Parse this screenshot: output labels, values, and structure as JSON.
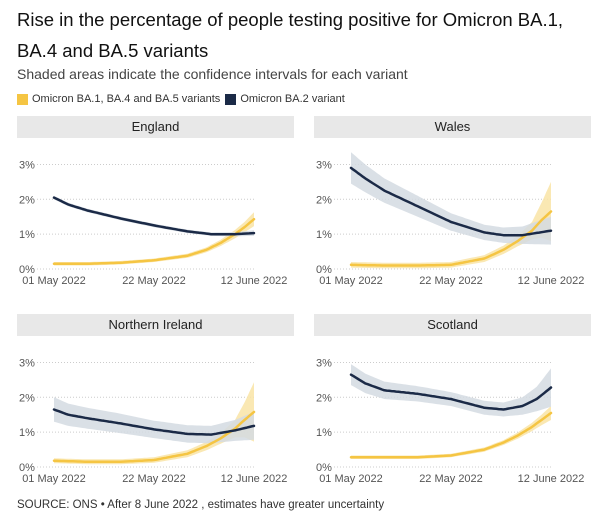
{
  "title": "Rise in the percentage of people testing positive for Omicron BA.1, BA.4 and BA.5 variants",
  "subtitle": "Shaded areas indicate the confidence intervals for each variant",
  "legend": [
    {
      "label": "Omicron BA.1, BA.4 and BA.5 variants",
      "color": "#f5c543"
    },
    {
      "label": "Omicron BA.2 variant",
      "color": "#1b2a47"
    }
  ],
  "colors": {
    "ba45": "#f5c543",
    "ba45_band": "#f9e4a6",
    "ba2": "#1b2a47",
    "ba2_band": "#d3dbe2",
    "grid": "#cccccc",
    "axis_text": "#555555"
  },
  "source": "SOURCE: ONS • After 8 June 2022 , estimates have greater uncertainty",
  "chart_data": [
    {
      "type": "line",
      "title": "England",
      "x_tick_labels": [
        "01 May 2022",
        "22 May 2022",
        "12 June 2022"
      ],
      "x_ticks_day": [
        0,
        21,
        42
      ],
      "y_tick_labels": [
        "0%",
        "1%",
        "2%",
        "3%"
      ],
      "ylim": [
        0,
        3.3
      ],
      "xlim": [
        0,
        42
      ],
      "series": [
        {
          "name": "Omicron BA.1, BA.4 and BA.5 variants",
          "x": [
            0,
            7,
            14,
            21,
            28,
            32,
            35,
            38,
            40,
            42
          ],
          "y": [
            0.15,
            0.15,
            0.18,
            0.25,
            0.38,
            0.55,
            0.75,
            1.0,
            1.2,
            1.43
          ],
          "band": [
            0.05,
            0.05,
            0.05,
            0.05,
            0.06,
            0.07,
            0.09,
            0.12,
            0.15,
            0.2
          ]
        },
        {
          "name": "Omicron BA.2 variant",
          "x": [
            0,
            3,
            7,
            14,
            21,
            28,
            33,
            38,
            42
          ],
          "y": [
            2.05,
            1.85,
            1.68,
            1.45,
            1.25,
            1.08,
            1.0,
            1.0,
            1.03
          ],
          "band": [
            0.05,
            0.05,
            0.05,
            0.05,
            0.05,
            0.05,
            0.05,
            0.06,
            0.08
          ]
        }
      ]
    },
    {
      "type": "line",
      "title": "Wales",
      "x_tick_labels": [
        "01 May 2022",
        "22 May 2022",
        "12 June 2022"
      ],
      "x_ticks_day": [
        0,
        21,
        42
      ],
      "y_tick_labels": [
        "0%",
        "1%",
        "2%",
        "3%"
      ],
      "ylim": [
        0,
        3.3
      ],
      "xlim": [
        0,
        42
      ],
      "series": [
        {
          "name": "Omicron BA.1, BA.4 and BA.5 variants",
          "x": [
            0,
            7,
            14,
            21,
            28,
            32,
            35,
            38,
            40,
            42
          ],
          "y": [
            0.12,
            0.1,
            0.1,
            0.12,
            0.3,
            0.55,
            0.8,
            1.1,
            1.4,
            1.65
          ],
          "band": [
            0.08,
            0.08,
            0.08,
            0.08,
            0.1,
            0.12,
            0.15,
            0.25,
            0.5,
            0.85
          ]
        },
        {
          "name": "Omicron BA.2 variant",
          "x": [
            0,
            3,
            7,
            14,
            21,
            28,
            32,
            36,
            42
          ],
          "y": [
            2.9,
            2.6,
            2.25,
            1.8,
            1.35,
            1.05,
            0.97,
            0.97,
            1.1
          ],
          "band": [
            0.45,
            0.4,
            0.35,
            0.3,
            0.25,
            0.22,
            0.22,
            0.25,
            0.4
          ]
        }
      ]
    },
    {
      "type": "line",
      "title": "Northern Ireland",
      "x_tick_labels": [
        "01 May 2022",
        "22 May 2022",
        "12 June 2022"
      ],
      "x_ticks_day": [
        0,
        21,
        42
      ],
      "y_tick_labels": [
        "0%",
        "1%",
        "2%",
        "3%"
      ],
      "ylim": [
        0,
        3.3
      ],
      "xlim": [
        0,
        42
      ],
      "series": [
        {
          "name": "Omicron BA.1, BA.4 and BA.5 variants",
          "x": [
            0,
            7,
            14,
            21,
            28,
            32,
            35,
            38,
            40,
            42
          ],
          "y": [
            0.18,
            0.15,
            0.15,
            0.2,
            0.38,
            0.6,
            0.82,
            1.1,
            1.35,
            1.58
          ],
          "band": [
            0.07,
            0.07,
            0.07,
            0.08,
            0.1,
            0.12,
            0.15,
            0.25,
            0.5,
            0.85
          ]
        },
        {
          "name": "Omicron BA.2 variant",
          "x": [
            0,
            3,
            7,
            14,
            21,
            28,
            33,
            38,
            42
          ],
          "y": [
            1.65,
            1.5,
            1.4,
            1.25,
            1.08,
            0.95,
            0.93,
            1.05,
            1.18
          ],
          "band": [
            0.35,
            0.32,
            0.3,
            0.28,
            0.25,
            0.25,
            0.25,
            0.3,
            0.4
          ]
        }
      ]
    },
    {
      "type": "line",
      "title": "Scotland",
      "x_tick_labels": [
        "01 May 2022",
        "22 May 2022",
        "12 June 2022"
      ],
      "x_ticks_day": [
        0,
        21,
        42
      ],
      "y_tick_labels": [
        "0%",
        "1%",
        "2%",
        "3%"
      ],
      "ylim": [
        0,
        3.3
      ],
      "xlim": [
        0,
        42
      ],
      "series": [
        {
          "name": "Omicron BA.1, BA.4 and BA.5 variants",
          "x": [
            0,
            7,
            14,
            21,
            28,
            32,
            35,
            38,
            40,
            42
          ],
          "y": [
            0.28,
            0.28,
            0.28,
            0.33,
            0.5,
            0.7,
            0.9,
            1.15,
            1.35,
            1.55
          ],
          "band": [
            0.05,
            0.05,
            0.05,
            0.05,
            0.06,
            0.07,
            0.09,
            0.12,
            0.15,
            0.2
          ]
        },
        {
          "name": "Omicron BA.2 variant",
          "x": [
            0,
            3,
            7,
            14,
            21,
            28,
            32,
            36,
            39,
            42
          ],
          "y": [
            2.65,
            2.4,
            2.2,
            2.1,
            1.95,
            1.7,
            1.65,
            1.75,
            1.95,
            2.28
          ],
          "band": [
            0.3,
            0.28,
            0.25,
            0.22,
            0.2,
            0.2,
            0.2,
            0.25,
            0.35,
            0.55
          ]
        }
      ]
    }
  ]
}
